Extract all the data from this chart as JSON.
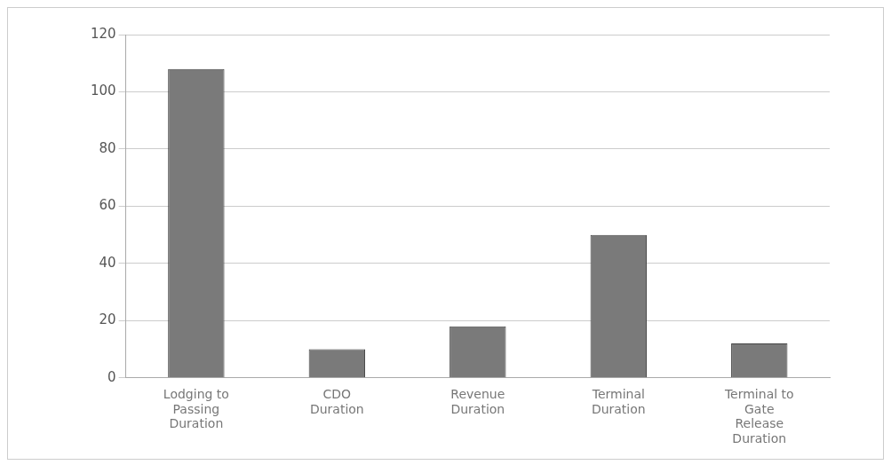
{
  "chart_data": {
    "type": "bar",
    "categories": [
      "Lodging to Passing Duration",
      "CDO Duration",
      "Revenue Duration",
      "Terminal Duration",
      "Terminal to Gate Release Duration"
    ],
    "values": [
      108,
      10,
      18,
      50,
      12
    ],
    "color": "#7a7a7a",
    "ylim": [
      0,
      120
    ],
    "yticks": [
      0,
      20,
      40,
      60,
      80,
      100,
      120
    ],
    "grid": "y"
  }
}
